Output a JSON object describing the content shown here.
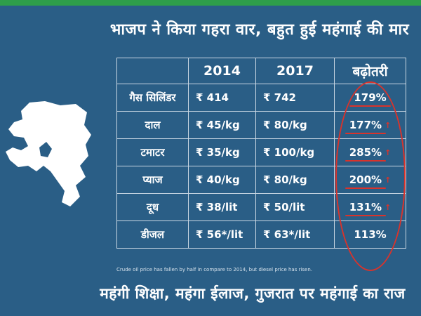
{
  "headline": "भाजप ने किया गहरा वार, बहुत हुई महंगाई की मार",
  "table": {
    "headers": [
      "",
      "2014",
      "2017",
      "बढ़ोतरी"
    ],
    "rows": [
      {
        "item": "गैस सिलिंडर",
        "y2014": "₹ 414",
        "y2017": "₹ 742",
        "increase": "179%",
        "marked": true,
        "arrow": false
      },
      {
        "item": "दाल",
        "y2014": "₹ 45/kg",
        "y2017": "₹ 80/kg",
        "increase": "177%",
        "marked": true,
        "arrow": true
      },
      {
        "item": "टमाटर",
        "y2014": "₹ 35/kg",
        "y2017": "₹ 100/kg",
        "increase": "285%",
        "marked": true,
        "arrow": true
      },
      {
        "item": "प्याज",
        "y2014": "₹ 40/kg",
        "y2017": "₹ 80/kg",
        "increase": "200%",
        "marked": true,
        "arrow": true
      },
      {
        "item": "दूध",
        "y2014": "₹ 38/lit",
        "y2017": "₹ 50/lit",
        "increase": "131%",
        "marked": true,
        "arrow": true
      },
      {
        "item": "डीजल",
        "y2014": "₹ 56*/lit",
        "y2017": "₹ 63*/lit",
        "increase": "113%",
        "marked": false,
        "arrow": false
      }
    ]
  },
  "footnote": "Crude oil price has fallen by half in compare to 2014, but diesel price has risen.",
  "bottom_line": "महंगी शिक्षा, महंगा ईलाज, गुजरात पर महंगाई का राज",
  "colors": {
    "background": "#2a5e86",
    "top_stripe": "#2e9e4a",
    "annotation_red": "#d9332b",
    "map_fill": "#ffffff"
  },
  "icons": {
    "map": "gujarat-map-silhouette",
    "arrow": "up-arrow-icon"
  }
}
